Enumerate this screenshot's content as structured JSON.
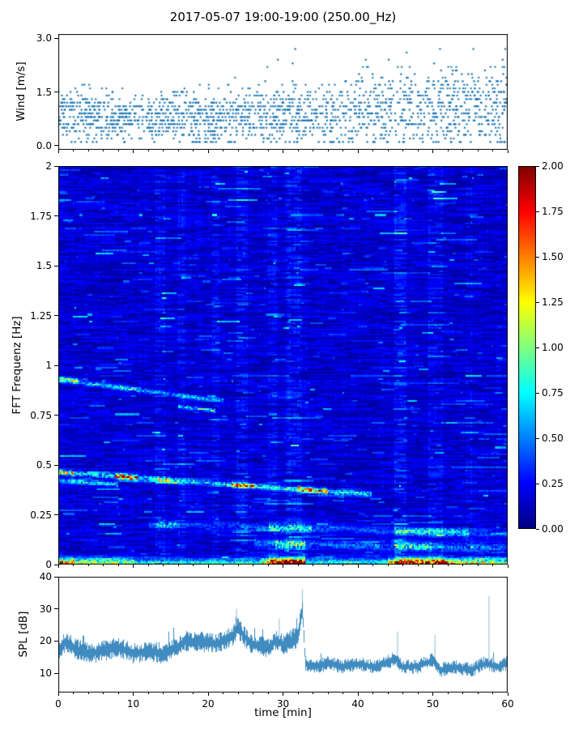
{
  "title": "2017-05-07 19:00-19:00 (250.00_Hz)",
  "colors": {
    "series": "#1f77b4",
    "frame": "#000000",
    "background": "#ffffff"
  },
  "chart_data": [
    {
      "type": "scatter",
      "panel": "wind",
      "ylabel": "Wind [m/s]",
      "ylim": [
        -0.12,
        3.12
      ],
      "yticks": [
        "0.0",
        "1.5",
        "3.0"
      ],
      "xlim": [
        0,
        60
      ],
      "marker": "point",
      "quantize_step": 0.1,
      "n_points": 1800,
      "bins": [
        {
          "t": 0,
          "mean": 0.8,
          "sd": 0.33,
          "max": 1.7
        },
        {
          "t": 5,
          "mean": 0.85,
          "sd": 0.38,
          "max": 1.8
        },
        {
          "t": 10,
          "mean": 0.75,
          "sd": 0.3,
          "max": 1.5
        },
        {
          "t": 15,
          "mean": 0.8,
          "sd": 0.33,
          "max": 1.6
        },
        {
          "t": 20,
          "mean": 0.8,
          "sd": 0.35,
          "max": 1.8
        },
        {
          "t": 25,
          "mean": 0.85,
          "sd": 0.38,
          "max": 1.9
        },
        {
          "t": 30,
          "mean": 0.85,
          "sd": 0.4,
          "max": 2.9
        },
        {
          "t": 35,
          "mean": 0.9,
          "sd": 0.42,
          "max": 2.2
        },
        {
          "t": 40,
          "mean": 1.0,
          "sd": 0.5,
          "max": 2.6
        },
        {
          "t": 45,
          "mean": 1.1,
          "sd": 0.55,
          "max": 2.9
        },
        {
          "t": 50,
          "mean": 1.15,
          "sd": 0.55,
          "max": 2.8
        },
        {
          "t": 55,
          "mean": 1.1,
          "sd": 0.52,
          "max": 2.9
        },
        {
          "t": 60,
          "mean": 1.1,
          "sd": 0.52,
          "max": 2.7
        }
      ]
    },
    {
      "type": "heatmap",
      "panel": "spectrogram",
      "ylabel": "FFT Frequenz [Hz]",
      "ylim": [
        0,
        2
      ],
      "yticks": [
        "0",
        "0.25",
        "0.5",
        "0.75",
        "1",
        "1.25",
        "1.5",
        "1.75",
        "2"
      ],
      "xlim": [
        0,
        60
      ],
      "colormap": "jet",
      "vmin": 0,
      "vmax": 2,
      "colorbar_ticks": [
        "0.00",
        "0.25",
        "0.50",
        "0.75",
        "1.00",
        "1.25",
        "1.50",
        "1.75",
        "2.00"
      ],
      "bands": [
        {
          "f_start": 0.46,
          "f_end": 0.35,
          "t0": 0,
          "t1": 42,
          "width": 0.013,
          "amp": 0.55,
          "bright": [
            {
              "t0": 0,
              "t1": 2,
              "amp": 1.0
            },
            {
              "t0": 7.5,
              "t1": 10.5,
              "amp": 1.55
            },
            {
              "t0": 13,
              "t1": 15,
              "amp": 0.9
            },
            {
              "t0": 23,
              "t1": 26,
              "amp": 1.25
            },
            {
              "t0": 32,
              "t1": 36,
              "amp": 1.5
            }
          ]
        },
        {
          "f_start": 0.42,
          "f_end": 0.4,
          "t0": 0,
          "t1": 8,
          "width": 0.01,
          "amp": 0.55,
          "bright": []
        },
        {
          "f_start": 0.93,
          "f_end": 0.82,
          "t0": 0,
          "t1": 22,
          "width": 0.012,
          "amp": 0.4,
          "bright": [
            {
              "t0": 0,
              "t1": 2.5,
              "amp": 0.85
            },
            {
              "t0": 8,
              "t1": 11,
              "amp": 0.6
            }
          ]
        },
        {
          "f_start": 0.79,
          "f_end": 0.77,
          "t0": 16,
          "t1": 21,
          "width": 0.01,
          "amp": 0.45,
          "bright": []
        },
        {
          "f_start": 0.2,
          "f_end": 0.15,
          "t0": 12,
          "t1": 60,
          "width": 0.02,
          "amp": 0.22,
          "bright": [
            {
              "t0": 13,
              "t1": 16,
              "amp": 0.5
            },
            {
              "t0": 28,
              "t1": 34,
              "amp": 0.6
            },
            {
              "t0": 45,
              "t1": 55,
              "amp": 0.55
            }
          ]
        },
        {
          "f_start": 0.1,
          "f_end": 0.08,
          "t0": 26,
          "t1": 60,
          "width": 0.02,
          "amp": 0.28,
          "bright": [
            {
              "t0": 29,
              "t1": 33,
              "amp": 0.7
            },
            {
              "t0": 45,
              "t1": 50,
              "amp": 0.6
            }
          ]
        }
      ],
      "bottom_segments": [
        {
          "t0": 0,
          "t1": 2,
          "amp": 1.5
        },
        {
          "t0": 2,
          "t1": 10,
          "amp": 0.95
        },
        {
          "t0": 10,
          "t1": 27,
          "amp": 0.6
        },
        {
          "t0": 27,
          "t1": 28,
          "amp": 1.2
        },
        {
          "t0": 28,
          "t1": 33,
          "amp": 1.9
        },
        {
          "t0": 33,
          "t1": 44,
          "amp": 0.55
        },
        {
          "t0": 44,
          "t1": 45,
          "amp": 1.0
        },
        {
          "t0": 45,
          "t1": 52,
          "amp": 1.75
        },
        {
          "t0": 52,
          "t1": 57,
          "amp": 1.1
        },
        {
          "t0": 57,
          "t1": 60,
          "amp": 0.9
        }
      ],
      "stripes": [
        {
          "t": 13.5,
          "w": 1.4,
          "g": 1.35
        },
        {
          "t": 16.5,
          "w": 1.0,
          "g": 1.3
        },
        {
          "t": 21.0,
          "w": 1.0,
          "g": 1.25
        },
        {
          "t": 24.5,
          "w": 1.6,
          "g": 1.35
        },
        {
          "t": 28.5,
          "w": 1.2,
          "g": 1.3
        },
        {
          "t": 31.5,
          "w": 2.2,
          "g": 1.45
        },
        {
          "t": 45.8,
          "w": 1.8,
          "g": 1.4
        },
        {
          "t": 50.5,
          "w": 2.0,
          "g": 1.35
        },
        {
          "t": 55.0,
          "w": 1.0,
          "g": 1.2
        }
      ]
    },
    {
      "type": "line",
      "panel": "spl",
      "ylabel": "SPL [dB]",
      "xlabel": "time [min]",
      "ylim": [
        4,
        40
      ],
      "yticks": [
        "10",
        "20",
        "30",
        "40"
      ],
      "xlim": [
        0,
        60
      ],
      "xticks": [
        "0",
        "10",
        "20",
        "30",
        "40",
        "50",
        "60"
      ],
      "baseline": [
        [
          0,
          17
        ],
        [
          1,
          20
        ],
        [
          2,
          18
        ],
        [
          4,
          16
        ],
        [
          6,
          17
        ],
        [
          8,
          18
        ],
        [
          10,
          16
        ],
        [
          12,
          17
        ],
        [
          14,
          16
        ],
        [
          16,
          18
        ],
        [
          17,
          20
        ],
        [
          19,
          20
        ],
        [
          21,
          19
        ],
        [
          23,
          21
        ],
        [
          24,
          24
        ],
        [
          25,
          21
        ],
        [
          26,
          19
        ],
        [
          28,
          18
        ],
        [
          29,
          20
        ],
        [
          30,
          19
        ],
        [
          31,
          20
        ],
        [
          32,
          22
        ],
        [
          32.6,
          30
        ],
        [
          33,
          13
        ],
        [
          34,
          12
        ],
        [
          36,
          13
        ],
        [
          38,
          12
        ],
        [
          40,
          13
        ],
        [
          42,
          12
        ],
        [
          44,
          13
        ],
        [
          45,
          15
        ],
        [
          46,
          12
        ],
        [
          48,
          12
        ],
        [
          50,
          14
        ],
        [
          51,
          11
        ],
        [
          53,
          12
        ],
        [
          55,
          11
        ],
        [
          57,
          13
        ],
        [
          59,
          12
        ],
        [
          60,
          13
        ]
      ],
      "noise_amp": [
        [
          0,
          2.4
        ],
        [
          30,
          2.4
        ],
        [
          32,
          3.0
        ],
        [
          33,
          1.7
        ],
        [
          60,
          1.7
        ]
      ],
      "spikes": [
        [
          23.8,
          30
        ],
        [
          29.5,
          27
        ],
        [
          32.6,
          36
        ],
        [
          45.3,
          23
        ],
        [
          50.3,
          22
        ],
        [
          57.5,
          34
        ]
      ]
    }
  ]
}
